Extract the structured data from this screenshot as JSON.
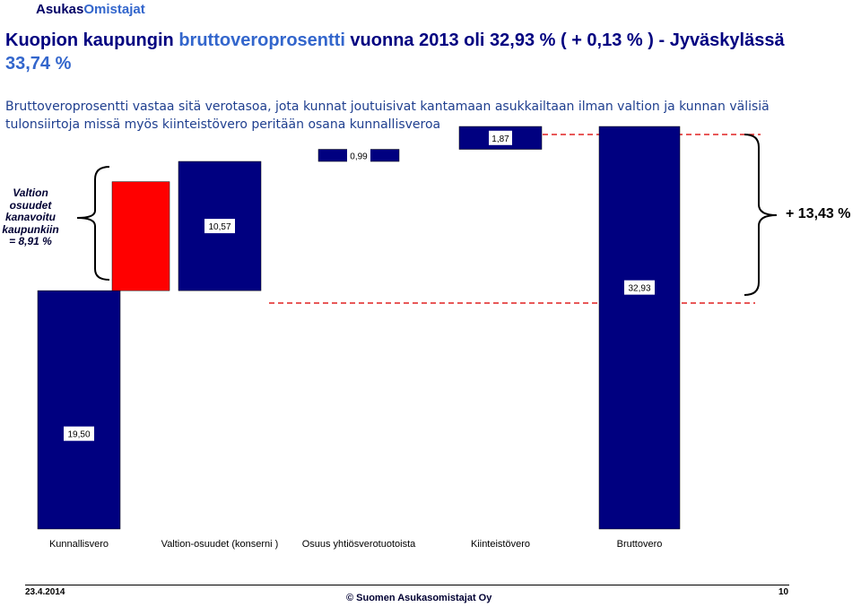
{
  "header": {
    "logo_part1": "Asukas",
    "logo_part2": "Omistajat",
    "title_part1": "Kuopion kaupungin ",
    "title_part2": "bruttoveroprosentti",
    "title_part3": " vuonna 2013 oli  32,93 % ( + 0,13 % )  - Jyväskylässä ",
    "title_part4": "33,74 %",
    "subtitle": "Bruttoveroprosentti vastaa sitä verotasoa, jota kunnat joutuisivat kantamaan asukkailtaan ilman valtion ja kunnan välisiä tulonsiirtoja missä myös kiinteistövero peritään osana kunnallisveroa"
  },
  "annotations": {
    "left_brace_label": "Valtion osuudet kanavoitu kaupunkiin = 8,91 %",
    "right_brace_label": "+ 13,43 %"
  },
  "colors": {
    "bar_blue": "#000080",
    "bar_red": "#ff0000",
    "reference_line": "#e02020",
    "title": "#000080",
    "title_highlight": "#3366cc"
  },
  "chart_data": {
    "type": "bar",
    "subtype": "waterfall",
    "categories": [
      "Kunnallisvero",
      "Valtion-osuudet (konserni )",
      "Osuus yhtiösverotuotoista",
      "Kiinteistövero",
      "Bruttovero"
    ],
    "bars": [
      {
        "category": "Kunnallisvero",
        "start": 0,
        "end": 19.5,
        "label": "19,50",
        "color": "#000080"
      },
      {
        "category": "Valtion-osuudet (konserni )",
        "start": 19.5,
        "end": 28.41,
        "label": "",
        "color": "#ff0000"
      },
      {
        "category": "Valtion-osuudet (konserni )",
        "start": 19.5,
        "end": 30.07,
        "label": "10,57",
        "color": "#000080"
      },
      {
        "category": "Osuus yhtiösverotuotoista",
        "start": 30.07,
        "end": 31.06,
        "label": "0,99",
        "color": "#000080"
      },
      {
        "category": "Kiinteistövero",
        "start": 31.06,
        "end": 32.93,
        "label": "1,87",
        "color": "#000080"
      },
      {
        "category": "Bruttovero",
        "start": 0,
        "end": 32.93,
        "label": "32,93",
        "color": "#000080"
      }
    ],
    "reference_lines": [
      19.5,
      32.93
    ],
    "ylim": [
      0,
      33.3
    ],
    "grid": false,
    "legend": "none",
    "xlabel": "",
    "ylabel": ""
  },
  "footer": {
    "date": "23.4.2014",
    "copyright": "© Suomen Asukasomistajat Oy",
    "page": "10"
  }
}
